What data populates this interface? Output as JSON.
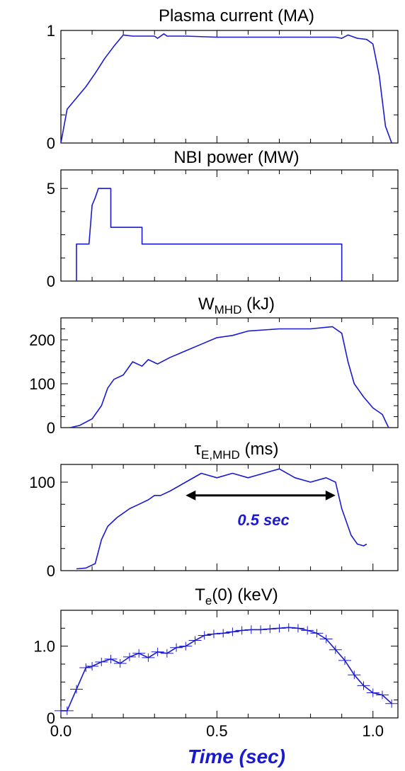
{
  "chart_data": [
    {
      "type": "line",
      "title": "Plasma current (MA)",
      "xlim": [
        0.0,
        1.08
      ],
      "ylim": [
        0,
        1
      ],
      "yticks": [
        0,
        1
      ],
      "ytick_labels": [
        "0",
        "1"
      ],
      "color": "#1a1ad0",
      "series": [
        {
          "x": [
            0.0,
            0.02,
            0.05,
            0.08,
            0.11,
            0.14,
            0.17,
            0.2,
            0.23,
            0.3,
            0.31,
            0.33,
            0.34,
            0.4,
            0.5,
            0.6,
            0.7,
            0.8,
            0.88,
            0.9,
            0.92,
            0.95,
            0.98,
            1.0,
            1.02,
            1.04,
            1.06
          ],
          "y": [
            0.0,
            0.3,
            0.4,
            0.5,
            0.62,
            0.75,
            0.86,
            0.96,
            0.95,
            0.95,
            0.93,
            0.97,
            0.95,
            0.95,
            0.94,
            0.94,
            0.94,
            0.94,
            0.94,
            0.93,
            0.96,
            0.93,
            0.92,
            0.88,
            0.6,
            0.15,
            0.0
          ]
        }
      ]
    },
    {
      "type": "line",
      "title": "NBI power (MW)",
      "xlim": [
        0.0,
        1.08
      ],
      "ylim": [
        0,
        6
      ],
      "yticks": [
        0,
        5
      ],
      "ytick_labels": [
        "0",
        "5"
      ],
      "color": "#1a1ad0",
      "series": [
        {
          "x": [
            0.05,
            0.05,
            0.09,
            0.1,
            0.11,
            0.12,
            0.16,
            0.16,
            0.26,
            0.26,
            0.4,
            0.6,
            0.8,
            0.9,
            0.9
          ],
          "y": [
            0.0,
            2.0,
            2.0,
            4.1,
            4.5,
            5.0,
            5.0,
            2.9,
            2.9,
            2.0,
            2.0,
            2.0,
            2.0,
            2.0,
            0.0
          ]
        }
      ]
    },
    {
      "type": "line",
      "title": "W",
      "title_sub": "MHD",
      "title_unit": " (kJ)",
      "xlim": [
        0.0,
        1.08
      ],
      "ylim": [
        0,
        250
      ],
      "yticks": [
        0,
        100,
        200
      ],
      "ytick_labels": [
        "0",
        "100",
        "200"
      ],
      "color": "#1a1ad0",
      "series": [
        {
          "x": [
            0.03,
            0.06,
            0.1,
            0.13,
            0.15,
            0.17,
            0.2,
            0.23,
            0.26,
            0.28,
            0.31,
            0.35,
            0.4,
            0.45,
            0.5,
            0.55,
            0.6,
            0.7,
            0.8,
            0.87,
            0.9,
            0.92,
            0.94,
            0.97,
            1.0,
            1.03,
            1.05
          ],
          "y": [
            0,
            5,
            20,
            50,
            90,
            110,
            120,
            150,
            140,
            155,
            145,
            160,
            175,
            190,
            205,
            210,
            220,
            225,
            225,
            230,
            215,
            150,
            100,
            70,
            45,
            30,
            0
          ]
        }
      ]
    },
    {
      "type": "line",
      "title": "τ",
      "title_sub": "E,MHD",
      "title_unit": " (ms)",
      "xlim": [
        0.0,
        1.08
      ],
      "ylim": [
        0,
        120
      ],
      "yticks": [
        0,
        100
      ],
      "ytick_labels": [
        "0",
        "100"
      ],
      "color": "#1a1ad0",
      "annotation": {
        "text": "0.5 sec",
        "x_start": 0.4,
        "x_end": 0.88,
        "y": 85
      },
      "series": [
        {
          "x": [
            0.05,
            0.08,
            0.11,
            0.13,
            0.15,
            0.18,
            0.2,
            0.22,
            0.25,
            0.28,
            0.3,
            0.32,
            0.35,
            0.4,
            0.45,
            0.5,
            0.55,
            0.6,
            0.65,
            0.7,
            0.75,
            0.8,
            0.85,
            0.88,
            0.9,
            0.93,
            0.95,
            0.97,
            0.98
          ],
          "y": [
            2,
            3,
            8,
            35,
            50,
            60,
            65,
            70,
            75,
            80,
            85,
            85,
            90,
            100,
            110,
            105,
            110,
            105,
            110,
            115,
            105,
            100,
            105,
            100,
            70,
            40,
            30,
            28,
            30
          ]
        }
      ]
    },
    {
      "type": "line",
      "title": "T",
      "title_sub": "e",
      "title_unit": "(0) (keV)",
      "xlim": [
        0.0,
        1.08
      ],
      "ylim": [
        0,
        1.5
      ],
      "yticks": [
        0,
        1.0
      ],
      "ytick_labels": [
        "0",
        "1.0"
      ],
      "xticks": [
        0.0,
        0.5,
        1.0
      ],
      "xtick_labels": [
        "0.0",
        "0.5",
        "1.0"
      ],
      "xlabel": "Time (sec)",
      "color": "#1a1ad0",
      "error_bars": true,
      "series": [
        {
          "x": [
            0.0,
            0.02,
            0.05,
            0.08,
            0.1,
            0.13,
            0.16,
            0.19,
            0.22,
            0.25,
            0.28,
            0.31,
            0.34,
            0.37,
            0.4,
            0.43,
            0.46,
            0.49,
            0.52,
            0.55,
            0.58,
            0.61,
            0.64,
            0.67,
            0.7,
            0.73,
            0.76,
            0.79,
            0.82,
            0.85,
            0.88,
            0.91,
            0.94,
            0.97,
            1.0,
            1.03,
            1.06
          ],
          "y": [
            0.1,
            0.1,
            0.4,
            0.7,
            0.72,
            0.78,
            0.82,
            0.76,
            0.85,
            0.9,
            0.84,
            0.92,
            0.9,
            0.98,
            1.0,
            1.08,
            1.15,
            1.17,
            1.18,
            1.2,
            1.22,
            1.23,
            1.23,
            1.24,
            1.25,
            1.26,
            1.25,
            1.22,
            1.18,
            1.1,
            0.95,
            0.8,
            0.6,
            0.45,
            0.35,
            0.32,
            0.2
          ]
        }
      ]
    }
  ]
}
